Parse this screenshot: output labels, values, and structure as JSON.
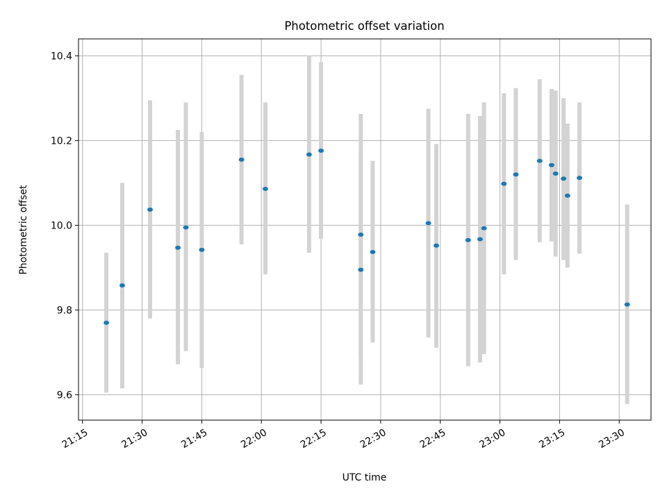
{
  "chart_data": {
    "type": "scatter",
    "title": "Photometric offset variation",
    "xlabel": "UTC time",
    "ylabel": "Photometric offset",
    "grid": true,
    "x_ticks": [
      "21:15",
      "21:30",
      "21:45",
      "22:00",
      "22:15",
      "22:30",
      "22:45",
      "23:00",
      "23:15",
      "23:30"
    ],
    "y_ticks": [
      "9.6",
      "9.8",
      "10.0",
      "10.2",
      "10.4"
    ],
    "xlim": [
      "21:14",
      "23:38"
    ],
    "ylim": [
      9.54,
      10.44
    ],
    "colors": {
      "marker": "#1f77b4",
      "errorbar": "#d3d3d3",
      "grid": "#b0b0b0"
    },
    "points": [
      {
        "x": "21:21",
        "y": 9.77,
        "ylow": 9.605,
        "yhigh": 9.935
      },
      {
        "x": "21:25",
        "y": 9.858,
        "ylow": 9.615,
        "yhigh": 10.1
      },
      {
        "x": "21:32",
        "y": 10.037,
        "ylow": 9.78,
        "yhigh": 10.295
      },
      {
        "x": "21:39",
        "y": 9.947,
        "ylow": 9.672,
        "yhigh": 10.225
      },
      {
        "x": "21:41",
        "y": 9.995,
        "ylow": 9.703,
        "yhigh": 10.29
      },
      {
        "x": "21:45",
        "y": 9.942,
        "ylow": 9.663,
        "yhigh": 10.22
      },
      {
        "x": "21:55",
        "y": 10.155,
        "ylow": 9.955,
        "yhigh": 10.355
      },
      {
        "x": "22:01",
        "y": 10.086,
        "ylow": 9.884,
        "yhigh": 10.29
      },
      {
        "x": "22:12",
        "y": 10.167,
        "ylow": 9.935,
        "yhigh": 10.4
      },
      {
        "x": "22:15",
        "y": 10.176,
        "ylow": 9.968,
        "yhigh": 10.385
      },
      {
        "x": "22:25",
        "y": 9.978,
        "ylow": 9.693,
        "yhigh": 10.263
      },
      {
        "x": "22:25",
        "y": 9.895,
        "ylow": 9.624,
        "yhigh": 10.168
      },
      {
        "x": "22:28",
        "y": 9.937,
        "ylow": 9.723,
        "yhigh": 10.152
      },
      {
        "x": "22:42",
        "y": 10.005,
        "ylow": 9.735,
        "yhigh": 10.275
      },
      {
        "x": "22:44",
        "y": 9.952,
        "ylow": 9.711,
        "yhigh": 10.192
      },
      {
        "x": "22:52",
        "y": 9.965,
        "ylow": 9.667,
        "yhigh": 10.263
      },
      {
        "x": "22:55",
        "y": 9.967,
        "ylow": 9.676,
        "yhigh": 10.258
      },
      {
        "x": "22:56",
        "y": 9.993,
        "ylow": 9.696,
        "yhigh": 10.29
      },
      {
        "x": "23:01",
        "y": 10.098,
        "ylow": 9.884,
        "yhigh": 10.312
      },
      {
        "x": "23:04",
        "y": 10.12,
        "ylow": 9.918,
        "yhigh": 10.324
      },
      {
        "x": "23:10",
        "y": 10.152,
        "ylow": 9.96,
        "yhigh": 10.345
      },
      {
        "x": "23:13",
        "y": 10.142,
        "ylow": 9.962,
        "yhigh": 10.322
      },
      {
        "x": "23:14",
        "y": 10.122,
        "ylow": 9.926,
        "yhigh": 10.318
      },
      {
        "x": "23:16",
        "y": 10.11,
        "ylow": 9.918,
        "yhigh": 10.3
      },
      {
        "x": "23:17",
        "y": 10.07,
        "ylow": 9.9,
        "yhigh": 10.24
      },
      {
        "x": "23:20",
        "y": 10.112,
        "ylow": 9.933,
        "yhigh": 10.29
      },
      {
        "x": "23:32",
        "y": 9.813,
        "ylow": 9.578,
        "yhigh": 10.049
      }
    ]
  }
}
